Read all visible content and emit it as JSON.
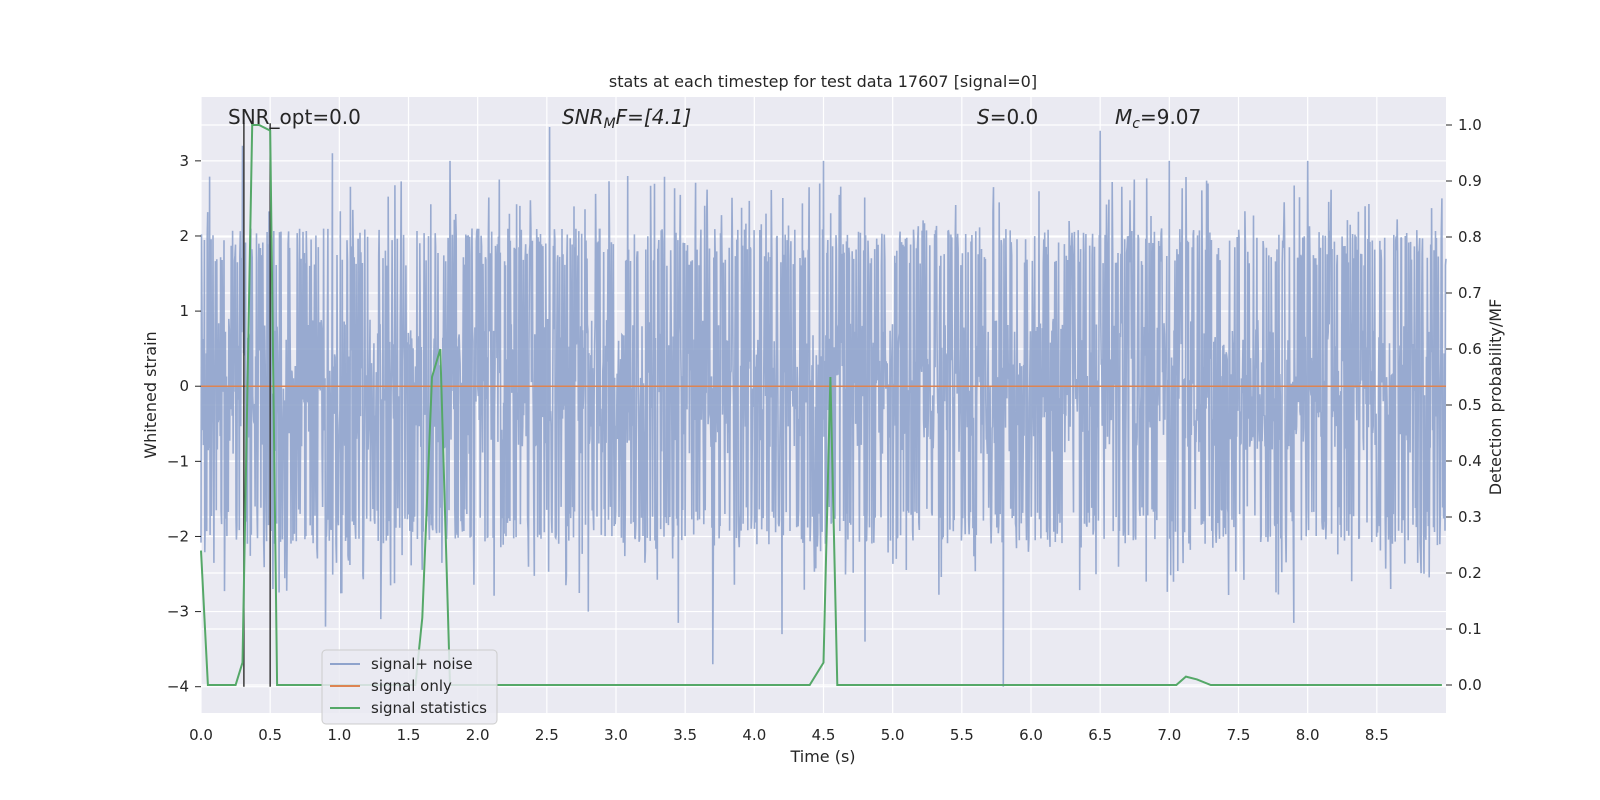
{
  "chart_data": {
    "type": "line",
    "title": "stats at each timestep for test data 17607 [signal=0]",
    "xlabel": "Time (s)",
    "ylabel_left": "Whitened strain",
    "ylabel_right": "Detection probability/MF",
    "xlim": [
      0.0,
      9.0
    ],
    "ylim_left": [
      -4.35,
      3.85
    ],
    "ylim_right": [
      -0.05,
      1.05
    ],
    "x_ticks": [
      0.0,
      0.5,
      1.0,
      1.5,
      2.0,
      2.5,
      3.0,
      3.5,
      4.0,
      4.5,
      5.0,
      5.5,
      6.0,
      6.5,
      7.0,
      7.5,
      8.0,
      8.5
    ],
    "x_tick_labels": [
      "0.0",
      "0.5",
      "1.0",
      "1.5",
      "2.0",
      "2.5",
      "3.0",
      "3.5",
      "4.0",
      "4.5",
      "5.0",
      "5.5",
      "6.0",
      "6.5",
      "7.0",
      "7.5",
      "8.0",
      "8.5"
    ],
    "y_ticks_left": [
      -4,
      -3,
      -2,
      -1,
      0,
      1,
      2,
      3
    ],
    "y_tick_labels_left": [
      "−4",
      "−3",
      "−2",
      "−1",
      "0",
      "1",
      "2",
      "3"
    ],
    "y_ticks_right": [
      0.0,
      0.1,
      0.2,
      0.3,
      0.4,
      0.5,
      0.6,
      0.7,
      0.8,
      0.9,
      1.0
    ],
    "y_tick_labels_right": [
      "0.0",
      "0.1",
      "0.2",
      "0.3",
      "0.4",
      "0.5",
      "0.6",
      "0.7",
      "0.8",
      "0.9",
      "1.0"
    ],
    "grid": true,
    "background": "#eaeaf2",
    "annotations": {
      "snr_opt": "SNR_opt=0.0",
      "snr_mf_base": "SNR",
      "snr_mf_sub": "M",
      "snr_mf_rest": "F=[4.1]",
      "s_italic": "S",
      "s_value": "=0.0",
      "mc_base": "M",
      "mc_sub": "c",
      "mc_value": "=9.07"
    },
    "vertical_markers_x": [
      0.31,
      0.5
    ],
    "legend": {
      "position": "lower-left",
      "entries": [
        {
          "label": "signal+ noise",
          "color": "#8fa3cc"
        },
        {
          "label": "signal only",
          "color": "#dd8452"
        },
        {
          "label": "signal statistics",
          "color": "#55a868"
        }
      ]
    },
    "series": [
      {
        "name": "signal+ noise",
        "axis": "left",
        "color": "#8fa3cc",
        "description_kind": "noise",
        "x_range": [
          0.0,
          9.0
        ],
        "typical_amplitude": 1.6,
        "peak_values": [
          {
            "x": 0.3,
            "y": 3.2
          },
          {
            "x": 0.52,
            "y": -2.7
          },
          {
            "x": 0.95,
            "y": 3.1
          },
          {
            "x": 0.9,
            "y": -3.2
          },
          {
            "x": 1.3,
            "y": -3.1
          },
          {
            "x": 1.8,
            "y": 3.0
          },
          {
            "x": 2.52,
            "y": 3.45
          },
          {
            "x": 2.8,
            "y": -3.0
          },
          {
            "x": 3.45,
            "y": -3.15
          },
          {
            "x": 3.7,
            "y": -3.7
          },
          {
            "x": 4.2,
            "y": -3.3
          },
          {
            "x": 4.5,
            "y": 3.0
          },
          {
            "x": 4.8,
            "y": -3.4
          },
          {
            "x": 5.8,
            "y": -4.0
          },
          {
            "x": 6.5,
            "y": 3.4
          },
          {
            "x": 7.0,
            "y": 3.0
          },
          {
            "x": 7.9,
            "y": -3.15
          },
          {
            "x": 8.0,
            "y": 3.0
          },
          {
            "x": 8.6,
            "y": -2.7
          },
          {
            "x": 8.97,
            "y": 2.5
          }
        ]
      },
      {
        "name": "signal only",
        "axis": "left",
        "color": "#dd8452",
        "x": [
          0.0,
          9.0
        ],
        "y": [
          0.0,
          0.0
        ]
      },
      {
        "name": "signal statistics",
        "axis": "right",
        "color": "#55a868",
        "x": [
          0.0,
          0.05,
          0.1,
          0.25,
          0.3,
          0.37,
          0.42,
          0.5,
          0.55,
          0.6,
          1.55,
          1.6,
          1.67,
          1.73,
          1.8,
          1.85,
          4.4,
          4.5,
          4.55,
          4.6,
          4.65,
          6.9,
          7.05,
          7.12,
          7.2,
          7.3,
          7.5,
          8.6,
          8.97
        ],
        "y": [
          0.24,
          0.0,
          0.0,
          0.0,
          0.04,
          1.0,
          1.0,
          0.99,
          0.0,
          0.0,
          0.0,
          0.12,
          0.55,
          0.6,
          0.0,
          0.0,
          0.0,
          0.04,
          0.55,
          0.0,
          0.0,
          0.0,
          0.0,
          0.015,
          0.01,
          0.0,
          0.0,
          0.0,
          0.0
        ]
      }
    ]
  }
}
